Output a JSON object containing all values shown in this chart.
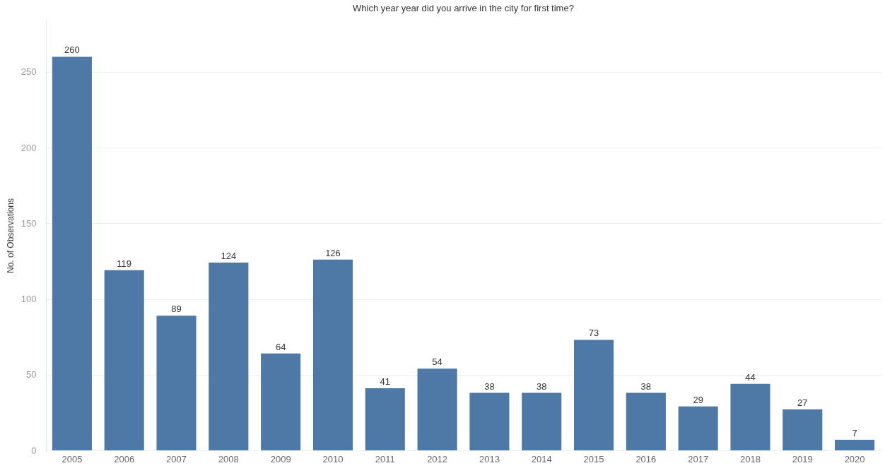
{
  "chart_data": {
    "type": "bar",
    "title": "Which year year did you arrive in the city for first time?",
    "ylabel": "No. of Observations",
    "categories": [
      "2005",
      "2006",
      "2007",
      "2008",
      "2009",
      "2010",
      "2011",
      "2012",
      "2013",
      "2014",
      "2015",
      "2016",
      "2017",
      "2018",
      "2019",
      "2020"
    ],
    "values": [
      260,
      119,
      89,
      124,
      64,
      126,
      41,
      54,
      38,
      38,
      73,
      38,
      29,
      44,
      27,
      7
    ],
    "color": "#4e79a7",
    "ylim": [
      0,
      284
    ],
    "yticks": [
      0,
      50,
      100,
      150,
      200,
      250
    ],
    "grid": "y",
    "data_labels": true
  }
}
